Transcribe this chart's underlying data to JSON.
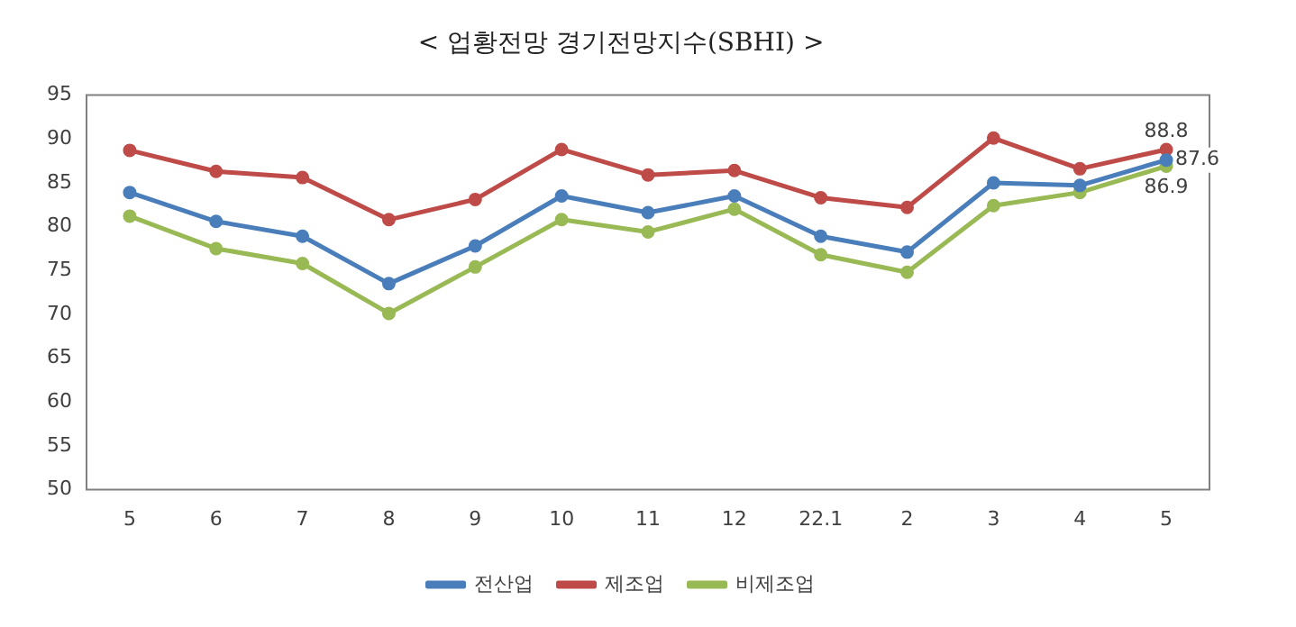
{
  "chart_data": {
    "type": "line",
    "title": "< 업황전망 경기전망지수(SBHI) >",
    "categories": [
      "5",
      "6",
      "7",
      "8",
      "9",
      "10",
      "11",
      "12",
      "22.1",
      "2",
      "3",
      "4",
      "5"
    ],
    "series": [
      {
        "name": "전산업",
        "color": "#4a7ebb",
        "values": [
          83.9,
          80.6,
          78.9,
          73.5,
          77.8,
          83.5,
          81.6,
          83.5,
          78.9,
          77.1,
          85.0,
          84.7,
          87.6
        ],
        "value_labels": [
          null,
          null,
          null,
          null,
          null,
          null,
          null,
          null,
          null,
          null,
          null,
          null,
          "87.6"
        ]
      },
      {
        "name": "제조업",
        "color": "#be4b48",
        "values": [
          88.7,
          86.3,
          85.6,
          80.8,
          83.1,
          88.8,
          85.9,
          86.4,
          83.3,
          82.2,
          90.1,
          86.6,
          88.8
        ],
        "value_labels": [
          null,
          null,
          null,
          null,
          null,
          null,
          null,
          null,
          null,
          null,
          null,
          null,
          "88.8"
        ]
      },
      {
        "name": "비제조업",
        "color": "#98b954",
        "values": [
          81.2,
          77.5,
          75.8,
          70.1,
          75.4,
          80.8,
          79.4,
          82.0,
          76.8,
          74.8,
          82.4,
          83.9,
          86.9
        ],
        "value_labels": [
          null,
          null,
          null,
          null,
          null,
          null,
          null,
          null,
          null,
          null,
          null,
          null,
          "86.9"
        ]
      }
    ],
    "ylim": [
      50,
      95
    ],
    "yticks": [
      50,
      55,
      60,
      65,
      70,
      75,
      80,
      85,
      90,
      95
    ],
    "grid": false,
    "legend": "bottom",
    "marker": "circle",
    "line_style": "solid"
  }
}
